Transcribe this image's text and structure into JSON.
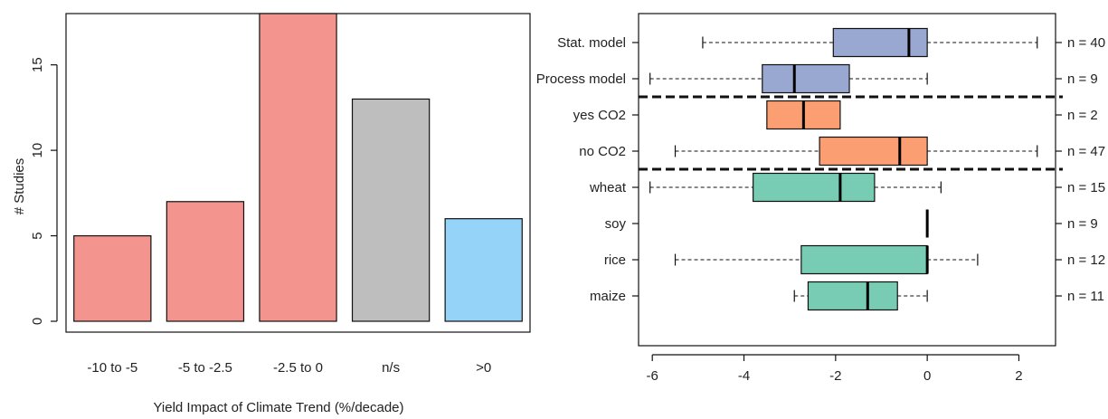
{
  "chart_data": [
    {
      "type": "bar",
      "title": "",
      "xlabel": "Yield Impact of Climate Trend (%/decade)",
      "ylabel": "# Studies",
      "categories": [
        "-10 to -5",
        "-5 to -2.5",
        "-2.5 to 0",
        "n/s",
        ">0"
      ],
      "values": [
        5,
        7,
        18,
        13,
        6
      ],
      "colors": [
        "#f4948f",
        "#f4948f",
        "#f4948f",
        "#bebebe",
        "#95d3f8"
      ],
      "yticks": [
        "0",
        "5",
        "10",
        "15"
      ],
      "ylim": [
        0,
        18
      ],
      "grid": false
    },
    {
      "type": "boxplot",
      "title": "",
      "xlabel": "",
      "ylabel": "",
      "xticks": [
        "-6",
        "-4",
        "-2",
        "0",
        "2"
      ],
      "xlim": [
        -6.3,
        2.8
      ],
      "separators_after_rows": [
        2,
        4
      ],
      "rows": [
        {
          "label": "Stat. model",
          "n_label": "n = 40",
          "color": "#99a8d1",
          "whisker_low": -4.9,
          "q1": -2.05,
          "median": -0.4,
          "q3": 0.0,
          "whisker_high": 2.4
        },
        {
          "label": "Process model",
          "n_label": "n = 9",
          "color": "#99a8d1",
          "whisker_low": -6.05,
          "q1": -3.6,
          "median": -2.9,
          "q3": -1.7,
          "whisker_high": 0.0
        },
        {
          "label": "yes CO2",
          "n_label": "n = 2",
          "color": "#fb9e72",
          "whisker_low": -3.5,
          "q1": -3.5,
          "median": -2.7,
          "q3": -1.9,
          "whisker_high": -1.9
        },
        {
          "label": "no CO2",
          "n_label": "n = 47",
          "color": "#fb9e72",
          "whisker_low": -5.5,
          "q1": -2.35,
          "median": -0.6,
          "q3": 0.0,
          "whisker_high": 2.4
        },
        {
          "label": "wheat",
          "n_label": "n = 15",
          "color": "#78ccb3",
          "whisker_low": -6.05,
          "q1": -3.8,
          "median": -1.9,
          "q3": -1.15,
          "whisker_high": 0.3
        },
        {
          "label": "soy",
          "n_label": "n = 9",
          "color": "#78ccb3",
          "whisker_low": 0.0,
          "q1": 0.0,
          "median": 0.0,
          "q3": 0.0,
          "whisker_high": 0.0
        },
        {
          "label": "rice",
          "n_label": "n = 12",
          "color": "#78ccb3",
          "whisker_low": -5.5,
          "q1": -2.75,
          "median": 0.0,
          "q3": 0.0,
          "whisker_high": 1.1
        },
        {
          "label": "maize",
          "n_label": "n = 11",
          "color": "#78ccb3",
          "whisker_low": -2.9,
          "q1": -2.6,
          "median": -1.3,
          "q3": -0.65,
          "whisker_high": 0.0
        }
      ]
    }
  ]
}
